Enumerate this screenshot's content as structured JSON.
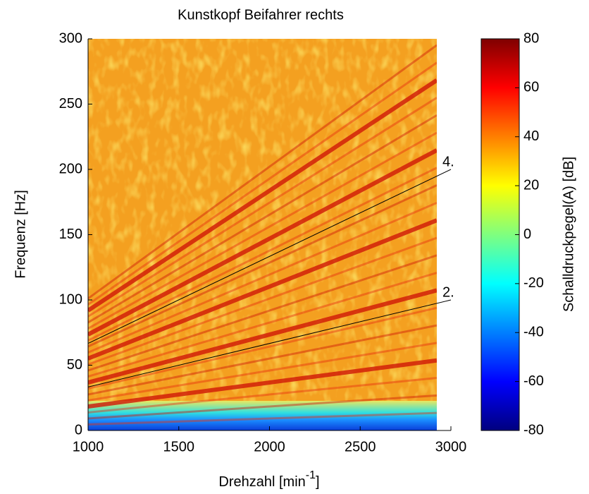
{
  "chart_data": {
    "type": "campbell",
    "title": "Kunstkopf Beifahrer rechts",
    "xlabel": {
      "text": "Drehzahl [min",
      "superscript": "-1",
      "suffix": "]"
    },
    "ylabel": "Frequenz [Hz]",
    "xlim": [
      1000,
      3000
    ],
    "xticks": [
      1000,
      1500,
      2000,
      2500,
      3000
    ],
    "ylim": [
      0,
      300
    ],
    "yticks": [
      0,
      50,
      100,
      150,
      200,
      250,
      300
    ],
    "series": [
      {
        "name": "2.",
        "color": "#000000",
        "x": [
          1000,
          3000
        ],
        "values": [
          33.3,
          100
        ]
      },
      {
        "name": "4.",
        "color": "#000000",
        "x": [
          1000,
          3000
        ],
        "values": [
          66.7,
          200
        ]
      }
    ],
    "colorbar": {
      "label": "Schalldruckpegel(A) [dB]",
      "zlim": [
        -80,
        80
      ],
      "ticks": [
        -80,
        -60,
        -40,
        -20,
        0,
        20,
        40,
        60,
        80
      ],
      "colormap": [
        "#00007f",
        "#0000ff",
        "#007fff",
        "#00ffff",
        "#7fff7f",
        "#ffff00",
        "#ff7f00",
        "#ff0000",
        "#7f0000"
      ]
    }
  }
}
